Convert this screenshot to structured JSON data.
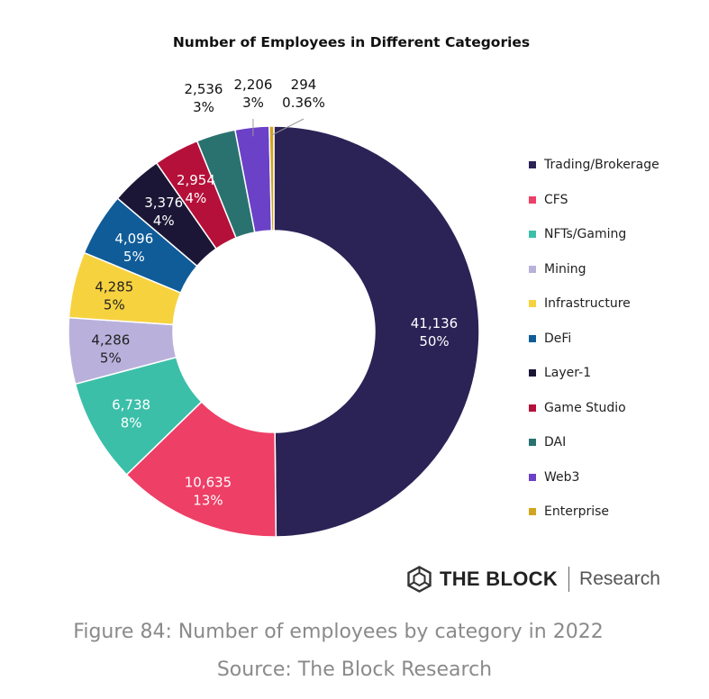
{
  "chart_data": {
    "type": "pie",
    "variant": "donut",
    "title": "Number of Employees in Different Categories",
    "categories": [
      "Trading/Brokerage",
      "CFS",
      "NFTs/Gaming",
      "Mining",
      "Infrastructure",
      "DeFi",
      "Layer-1",
      "Game Studio",
      "DAI",
      "Web3",
      "Enterprise"
    ],
    "values": [
      41136,
      10635,
      6738,
      4286,
      4285,
      4096,
      3376,
      2954,
      2536,
      2206,
      294
    ],
    "value_labels": [
      "41,136",
      "10,635",
      "6,738",
      "4,286",
      "4,285",
      "4,096",
      "3,376",
      "2,954",
      "2,536",
      "2,206",
      "294"
    ],
    "percent_labels": [
      "50%",
      "13%",
      "8%",
      "5%",
      "5%",
      "5%",
      "4%",
      "4%",
      "3%",
      "3%",
      "0.36%"
    ],
    "colors": [
      "#2b2356",
      "#ee3f66",
      "#3bbfa9",
      "#b9b1dc",
      "#f7d23f",
      "#0f5c99",
      "#1c1636",
      "#b5103a",
      "#2a7270",
      "#6a41c7",
      "#d1a51f"
    ],
    "legend_position": "right"
  },
  "branding": {
    "icon": "hexagon-cube-logo-icon",
    "name": "THE BLOCK",
    "subtitle": "Research"
  },
  "caption": {
    "figure": "Figure 84: Number of employees by category in 2022",
    "source": "Source: The Block Research"
  }
}
